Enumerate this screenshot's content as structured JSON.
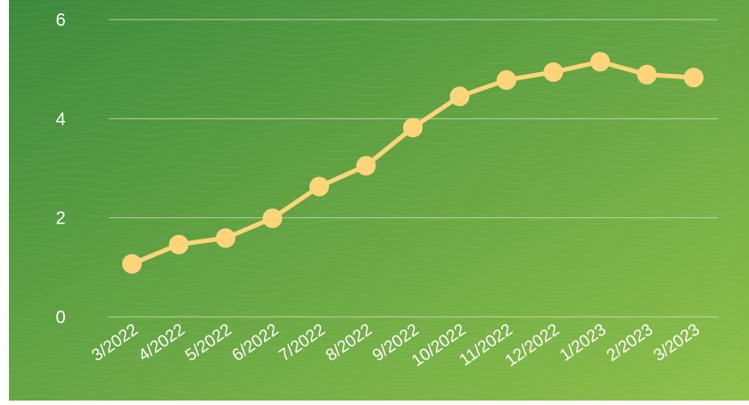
{
  "chart_data": {
    "type": "line",
    "categories": [
      "3/2022",
      "4/2022",
      "5/2022",
      "6/2022",
      "7/2022",
      "8/2022",
      "9/2022",
      "10/2022",
      "11/2022",
      "12/2022",
      "1/2023",
      "2/2023",
      "3/2023"
    ],
    "series": [
      {
        "values": [
          1.07,
          1.46,
          1.59,
          1.99,
          2.63,
          3.05,
          3.82,
          4.45,
          4.78,
          4.94,
          5.15,
          4.89,
          4.83
        ]
      }
    ],
    "ylim": [
      0,
      6
    ],
    "yticks": [
      0,
      2,
      4,
      6
    ],
    "grid": true,
    "legend": "none"
  },
  "colors": {
    "background_dark": "#3d8a3d",
    "background_light": "#8fc04a",
    "line": "#fcd57a",
    "marker": "#fcd57a",
    "grid": "#cfe6b8",
    "text": "#ffffff"
  }
}
